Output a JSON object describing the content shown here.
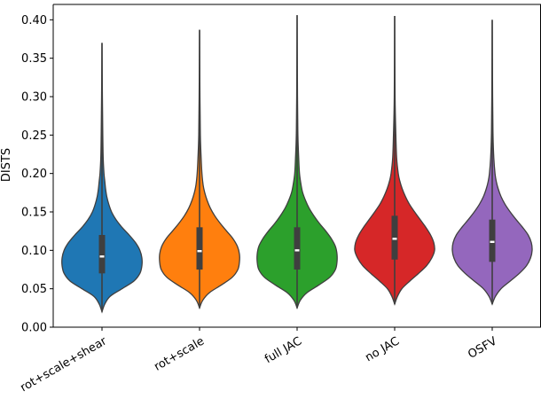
{
  "chart_data": {
    "type": "violin",
    "ylabel": "DISTS",
    "xlabel": "",
    "ylim": [
      0.0,
      0.42
    ],
    "yticks": [
      0.0,
      0.05,
      0.1,
      0.15,
      0.2,
      0.25,
      0.3,
      0.35,
      0.4
    ],
    "ytick_labels": [
      "0.00",
      "0.05",
      "0.10",
      "0.15",
      "0.20",
      "0.25",
      "0.30",
      "0.35",
      "0.40"
    ],
    "categories": [
      "rot+scale+shear",
      "rot+scale",
      "full JAC",
      "no JAC",
      "OSFV"
    ],
    "colors": [
      "#1f77b4",
      "#ff7f0e",
      "#2ca02c",
      "#d62728",
      "#9467bd"
    ],
    "violins": [
      {
        "name": "rot+scale+shear",
        "min": 0.02,
        "q1": 0.07,
        "median": 0.092,
        "q3": 0.12,
        "max": 0.37,
        "profile": [
          [
            0.02,
            0.0
          ],
          [
            0.03,
            0.07
          ],
          [
            0.04,
            0.2
          ],
          [
            0.05,
            0.5
          ],
          [
            0.06,
            0.8
          ],
          [
            0.07,
            0.95
          ],
          [
            0.08,
            1.0
          ],
          [
            0.09,
            1.0
          ],
          [
            0.1,
            0.95
          ],
          [
            0.11,
            0.84
          ],
          [
            0.12,
            0.68
          ],
          [
            0.13,
            0.5
          ],
          [
            0.14,
            0.35
          ],
          [
            0.15,
            0.24
          ],
          [
            0.16,
            0.17
          ],
          [
            0.17,
            0.12
          ],
          [
            0.18,
            0.09
          ],
          [
            0.19,
            0.07
          ],
          [
            0.2,
            0.05
          ],
          [
            0.22,
            0.03
          ],
          [
            0.25,
            0.02
          ],
          [
            0.3,
            0.01
          ],
          [
            0.37,
            0.0
          ]
        ]
      },
      {
        "name": "rot+scale",
        "min": 0.025,
        "q1": 0.075,
        "median": 0.099,
        "q3": 0.13,
        "max": 0.387,
        "profile": [
          [
            0.025,
            0.0
          ],
          [
            0.035,
            0.08
          ],
          [
            0.045,
            0.25
          ],
          [
            0.055,
            0.55
          ],
          [
            0.065,
            0.82
          ],
          [
            0.075,
            0.96
          ],
          [
            0.085,
            1.0
          ],
          [
            0.095,
            1.0
          ],
          [
            0.105,
            0.95
          ],
          [
            0.115,
            0.84
          ],
          [
            0.125,
            0.68
          ],
          [
            0.135,
            0.52
          ],
          [
            0.145,
            0.38
          ],
          [
            0.155,
            0.27
          ],
          [
            0.165,
            0.19
          ],
          [
            0.175,
            0.13
          ],
          [
            0.185,
            0.09
          ],
          [
            0.2,
            0.06
          ],
          [
            0.22,
            0.04
          ],
          [
            0.25,
            0.02
          ],
          [
            0.3,
            0.01
          ],
          [
            0.387,
            0.0
          ]
        ]
      },
      {
        "name": "full JAC",
        "min": 0.025,
        "q1": 0.075,
        "median": 0.1,
        "q3": 0.13,
        "max": 0.406,
        "profile": [
          [
            0.025,
            0.0
          ],
          [
            0.035,
            0.08
          ],
          [
            0.045,
            0.25
          ],
          [
            0.055,
            0.55
          ],
          [
            0.065,
            0.82
          ],
          [
            0.075,
            0.96
          ],
          [
            0.085,
            1.0
          ],
          [
            0.095,
            1.0
          ],
          [
            0.105,
            0.96
          ],
          [
            0.115,
            0.86
          ],
          [
            0.125,
            0.72
          ],
          [
            0.135,
            0.56
          ],
          [
            0.145,
            0.42
          ],
          [
            0.155,
            0.3
          ],
          [
            0.165,
            0.21
          ],
          [
            0.175,
            0.14
          ],
          [
            0.185,
            0.1
          ],
          [
            0.2,
            0.06
          ],
          [
            0.22,
            0.04
          ],
          [
            0.25,
            0.02
          ],
          [
            0.3,
            0.01
          ],
          [
            0.406,
            0.0
          ]
        ]
      },
      {
        "name": "no JAC",
        "min": 0.03,
        "q1": 0.088,
        "median": 0.115,
        "q3": 0.145,
        "max": 0.405,
        "profile": [
          [
            0.03,
            0.0
          ],
          [
            0.04,
            0.07
          ],
          [
            0.05,
            0.18
          ],
          [
            0.06,
            0.38
          ],
          [
            0.07,
            0.6
          ],
          [
            0.08,
            0.8
          ],
          [
            0.09,
            0.93
          ],
          [
            0.1,
            1.0
          ],
          [
            0.11,
            0.98
          ],
          [
            0.12,
            0.9
          ],
          [
            0.13,
            0.78
          ],
          [
            0.14,
            0.64
          ],
          [
            0.15,
            0.5
          ],
          [
            0.16,
            0.37
          ],
          [
            0.17,
            0.27
          ],
          [
            0.18,
            0.19
          ],
          [
            0.19,
            0.13
          ],
          [
            0.2,
            0.09
          ],
          [
            0.22,
            0.05
          ],
          [
            0.25,
            0.03
          ],
          [
            0.3,
            0.01
          ],
          [
            0.405,
            0.0
          ]
        ]
      },
      {
        "name": "OSFV",
        "min": 0.03,
        "q1": 0.085,
        "median": 0.111,
        "q3": 0.14,
        "max": 0.4,
        "profile": [
          [
            0.03,
            0.0
          ],
          [
            0.04,
            0.08
          ],
          [
            0.05,
            0.22
          ],
          [
            0.06,
            0.45
          ],
          [
            0.07,
            0.68
          ],
          [
            0.08,
            0.86
          ],
          [
            0.09,
            0.96
          ],
          [
            0.1,
            1.0
          ],
          [
            0.11,
            0.98
          ],
          [
            0.12,
            0.9
          ],
          [
            0.13,
            0.76
          ],
          [
            0.14,
            0.6
          ],
          [
            0.15,
            0.45
          ],
          [
            0.16,
            0.32
          ],
          [
            0.17,
            0.22
          ],
          [
            0.18,
            0.15
          ],
          [
            0.19,
            0.1
          ],
          [
            0.2,
            0.07
          ],
          [
            0.22,
            0.04
          ],
          [
            0.25,
            0.02
          ],
          [
            0.3,
            0.01
          ],
          [
            0.4,
            0.0
          ]
        ]
      }
    ]
  }
}
